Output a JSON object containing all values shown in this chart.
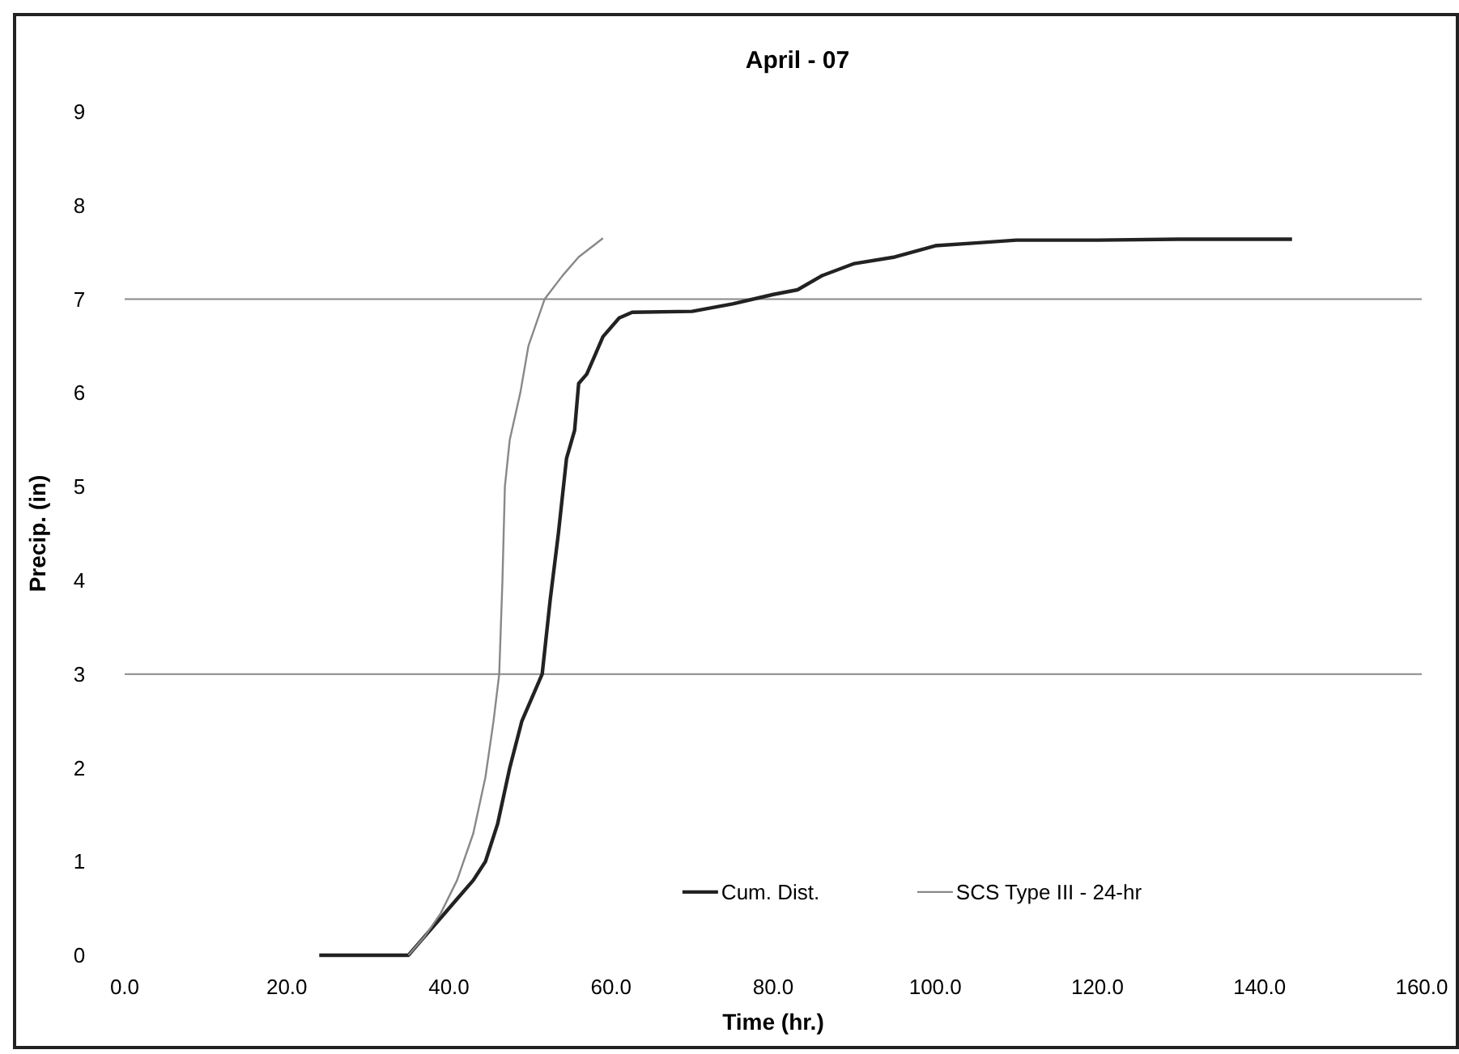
{
  "chart_data": {
    "type": "line",
    "title": "April - 07",
    "xlabel": "Time (hr.)",
    "ylabel": "Precip. (in)",
    "xlim": [
      0,
      160
    ],
    "ylim": [
      0,
      9
    ],
    "xticks": [
      {
        "value": 0,
        "label": "0.0"
      },
      {
        "value": 20,
        "label": "20.0"
      },
      {
        "value": 40,
        "label": "40.0"
      },
      {
        "value": 60,
        "label": "60.0"
      },
      {
        "value": 80,
        "label": "80.0"
      },
      {
        "value": 100,
        "label": "100.0"
      },
      {
        "value": 120,
        "label": "120.0"
      },
      {
        "value": 140,
        "label": "140.0"
      },
      {
        "value": 160,
        "label": "160.0"
      }
    ],
    "yticks": [
      0,
      1,
      2,
      3,
      4,
      5,
      6,
      7,
      8,
      9
    ],
    "ref_lines": [
      {
        "axis": "y",
        "value": 3,
        "color": "#888888"
      },
      {
        "axis": "y",
        "value": 7,
        "color": "#888888"
      }
    ],
    "legend": "bottom right",
    "series": [
      {
        "name": "Cum. Dist.",
        "color": "#222222",
        "x": [
          24,
          35,
          36.5,
          39,
          41,
          43,
          44.5,
          46,
          47.5,
          49,
          51.5,
          52.5,
          53.5,
          54.5,
          55.5,
          56,
          57,
          58,
          59,
          61,
          62.6,
          70,
          75,
          80,
          83,
          86,
          90,
          95,
          100,
          105,
          110,
          120,
          130,
          144
        ],
        "values": [
          0,
          0,
          0.15,
          0.4,
          0.6,
          0.8,
          1.0,
          1.4,
          2.0,
          2.5,
          3.0,
          3.8,
          4.5,
          5.3,
          5.6,
          6.1,
          6.2,
          6.4,
          6.6,
          6.8,
          6.86,
          6.87,
          6.95,
          7.05,
          7.1,
          7.25,
          7.38,
          7.45,
          7.57,
          7.6,
          7.63,
          7.63,
          7.64,
          7.64
        ]
      },
      {
        "name": "SCS Type III - 24-hr",
        "color": "#888888",
        "x": [
          35,
          37,
          39,
          41,
          43,
          44.5,
          45.5,
          46.2,
          46.6,
          46.9,
          47.5,
          48.8,
          49.8,
          51.8,
          54,
          56,
          59
        ],
        "values": [
          0,
          0.2,
          0.45,
          0.8,
          1.3,
          1.9,
          2.5,
          3.0,
          4.0,
          5.0,
          5.5,
          6.0,
          6.5,
          7.0,
          7.25,
          7.45,
          7.65
        ]
      }
    ]
  }
}
